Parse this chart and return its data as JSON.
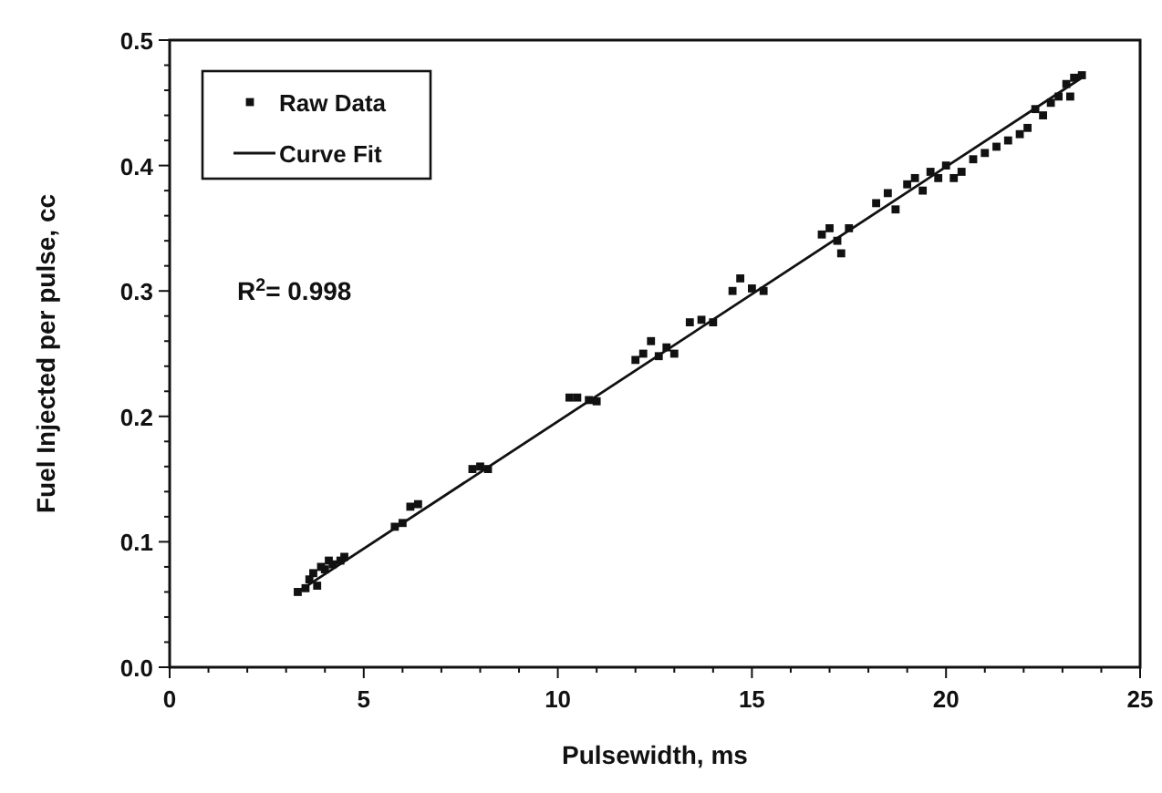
{
  "chart_data": {
    "type": "scatter",
    "xlabel": "Pulsewidth, ms",
    "ylabel": "Fuel Injected per pulse, cc",
    "xlim": [
      0,
      25
    ],
    "ylim": [
      0,
      0.5
    ],
    "xticks": [
      0,
      {
        "value": 1,
        "label": null
      },
      {
        "value": 2,
        "label": null
      },
      {
        "value": 3,
        "label": null
      },
      {
        "value": 4,
        "label": null
      },
      5,
      {
        "value": 6,
        "label": null
      },
      {
        "value": 7,
        "label": null
      },
      {
        "value": 8,
        "label": null
      },
      {
        "value": 9,
        "label": null
      },
      10,
      {
        "value": 11,
        "label": null
      },
      {
        "value": 12,
        "label": null
      },
      {
        "value": 13,
        "label": null
      },
      {
        "value": 14,
        "label": null
      },
      15,
      {
        "value": 16,
        "label": null
      },
      {
        "value": 17,
        "label": null
      },
      {
        "value": 18,
        "label": null
      },
      {
        "value": 19,
        "label": null
      },
      20,
      {
        "value": 21,
        "label": null
      },
      {
        "value": 22,
        "label": null
      },
      {
        "value": 23,
        "label": null
      },
      {
        "value": 24,
        "label": null
      },
      25
    ],
    "yticks": [
      {
        "value": 0,
        "label": "0.0"
      },
      {
        "value": 0.02,
        "label": null
      },
      {
        "value": 0.04,
        "label": null
      },
      {
        "value": 0.06,
        "label": null
      },
      {
        "value": 0.08,
        "label": null
      },
      0.1,
      {
        "value": 0.12,
        "label": null
      },
      {
        "value": 0.14,
        "label": null
      },
      {
        "value": 0.16,
        "label": null
      },
      {
        "value": 0.18,
        "label": null
      },
      0.2,
      {
        "value": 0.22,
        "label": null
      },
      {
        "value": 0.24,
        "label": null
      },
      {
        "value": 0.26,
        "label": null
      },
      {
        "value": 0.28,
        "label": null
      },
      0.3,
      {
        "value": 0.32,
        "label": null
      },
      {
        "value": 0.34,
        "label": null
      },
      {
        "value": 0.36,
        "label": null
      },
      {
        "value": 0.38,
        "label": null
      },
      0.4,
      {
        "value": 0.42,
        "label": null
      },
      {
        "value": 0.44,
        "label": null
      },
      {
        "value": 0.46,
        "label": null
      },
      {
        "value": 0.48,
        "label": null
      },
      0.5
    ],
    "grid": false,
    "legend": "top left",
    "annotations": [
      "R$^{2}$= 0.998"
    ],
    "series": [
      {
        "name": "Raw Data",
        "marker": "square",
        "color": "#111111",
        "x": [
          3.3,
          3.5,
          3.6,
          3.7,
          3.8,
          3.9,
          4.0,
          4.1,
          4.2,
          4.4,
          4.5,
          5.8,
          6.0,
          6.2,
          6.4,
          7.8,
          8.0,
          8.2,
          10.3,
          10.5,
          10.8,
          11.0,
          12.0,
          12.2,
          12.4,
          12.6,
          12.8,
          13.0,
          13.4,
          13.7,
          14.0,
          14.5,
          14.7,
          15.0,
          15.3,
          16.8,
          17.0,
          17.2,
          17.5,
          17.3,
          18.2,
          18.5,
          18.7,
          19.0,
          19.2,
          19.4,
          19.6,
          19.8,
          20.0,
          20.2,
          20.4,
          20.7,
          21.0,
          21.3,
          21.6,
          21.9,
          22.1,
          22.3,
          22.5,
          22.7,
          22.9,
          23.1,
          23.3,
          23.5,
          23.2
        ],
        "values": [
          0.06,
          0.063,
          0.07,
          0.075,
          0.065,
          0.08,
          0.078,
          0.085,
          0.082,
          0.085,
          0.088,
          0.112,
          0.115,
          0.128,
          0.13,
          0.158,
          0.16,
          0.158,
          0.215,
          0.215,
          0.213,
          0.212,
          0.245,
          0.25,
          0.26,
          0.248,
          0.255,
          0.25,
          0.275,
          0.277,
          0.275,
          0.3,
          0.31,
          0.302,
          0.3,
          0.345,
          0.35,
          0.34,
          0.35,
          0.33,
          0.37,
          0.378,
          0.365,
          0.385,
          0.39,
          0.38,
          0.395,
          0.39,
          0.4,
          0.39,
          0.395,
          0.405,
          0.41,
          0.415,
          0.42,
          0.425,
          0.43,
          0.445,
          0.44,
          0.45,
          0.455,
          0.465,
          0.47,
          0.472,
          0.455
        ]
      },
      {
        "name": "Curve Fit",
        "type": "line",
        "color": "#111111",
        "line_style": "solid",
        "marker": "none",
        "x": [
          3.3,
          23.5
        ],
        "values": [
          0.06,
          0.47
        ]
      }
    ]
  }
}
